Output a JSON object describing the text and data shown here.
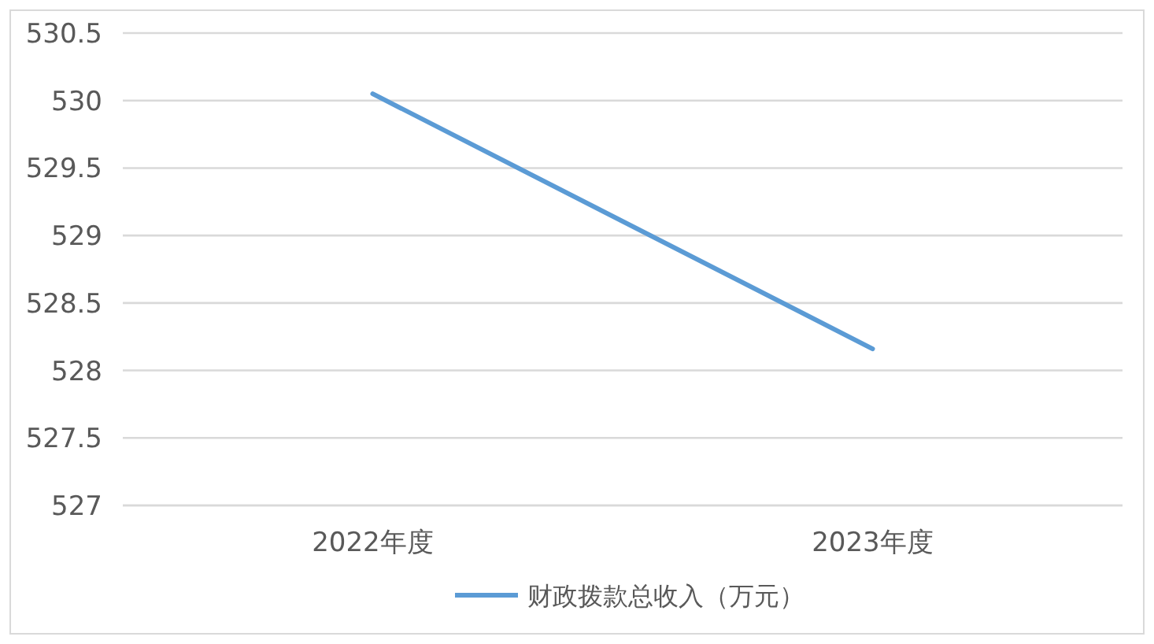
{
  "chart_data": {
    "type": "line",
    "categories": [
      "2022年度",
      "2023年度"
    ],
    "series": [
      {
        "name": "财政拨款总收入（万元）",
        "color": "#5b9bd5",
        "values": [
          530.05,
          528.16
        ]
      }
    ],
    "ylim": [
      527,
      530.5
    ],
    "yticks": [
      527,
      527.5,
      528,
      528.5,
      529,
      529.5,
      530,
      530.5
    ],
    "grid": "y",
    "legend": "bottom",
    "marker": "none",
    "line_style": "solid"
  }
}
